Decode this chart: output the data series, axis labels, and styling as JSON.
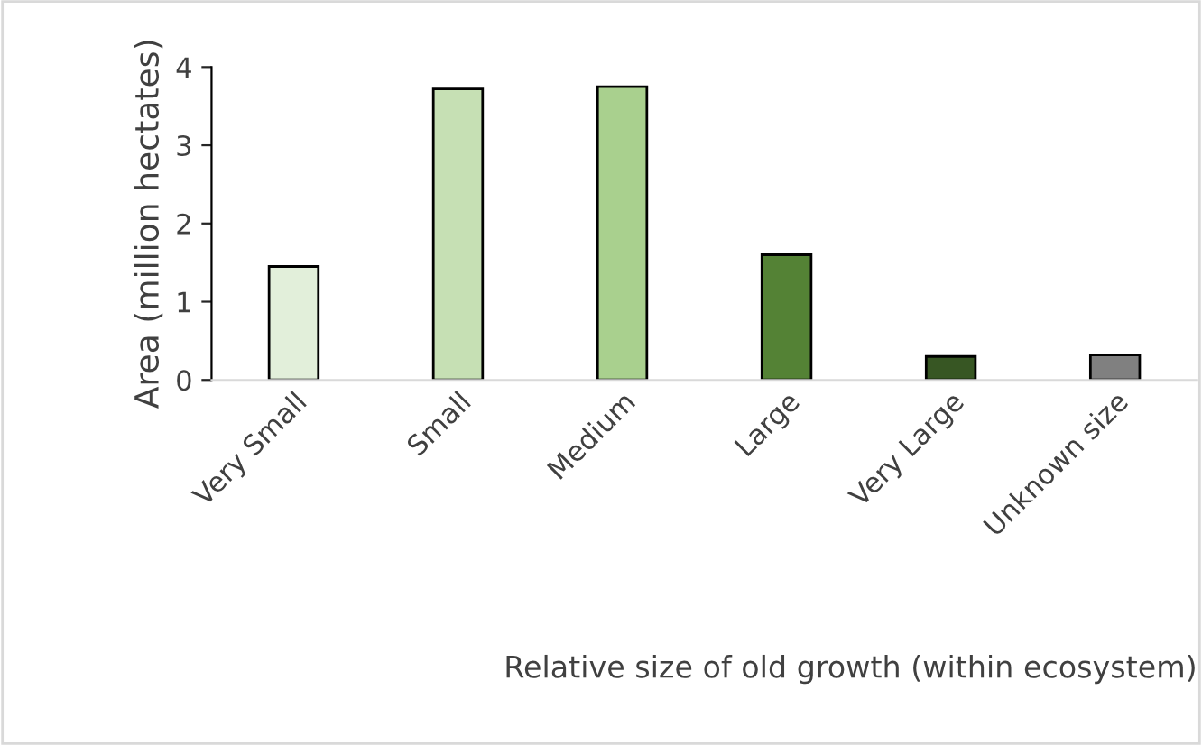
{
  "chart_data": {
    "type": "bar",
    "xlabel": "Relative size of old growth (within ecosystem)",
    "ylabel": "Area (million hectates)",
    "categories": [
      "Very Small",
      "Small",
      "Medium",
      "Large",
      "Very Large",
      "Unknown size"
    ],
    "values": [
      1.45,
      3.72,
      3.75,
      1.6,
      0.3,
      0.32
    ],
    "colors": [
      "#e2efda",
      "#c6e0b4",
      "#a9d08e",
      "#548235",
      "#375623",
      "#808080"
    ],
    "ylim": [
      0,
      4
    ],
    "yticks": [
      0,
      1,
      2,
      3,
      4
    ],
    "grid": false,
    "legend": false
  }
}
